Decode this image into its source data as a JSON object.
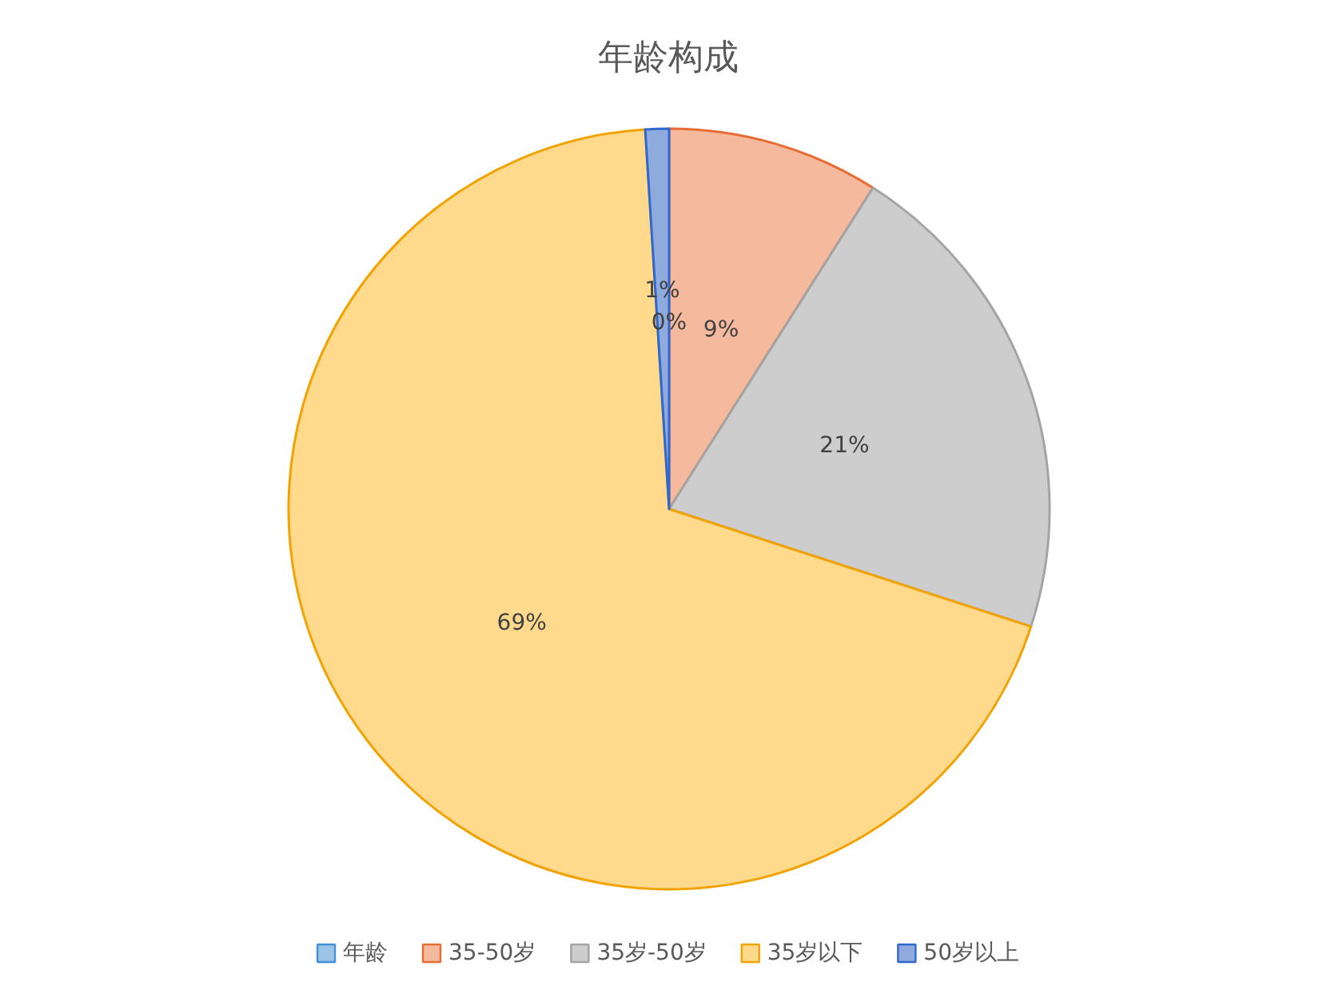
{
  "chart_data": {
    "type": "pie",
    "title": "年龄构成",
    "categories": [
      "年龄",
      "35-50岁",
      "35岁-50岁",
      "35岁以下",
      "50岁以上"
    ],
    "values": [
      0,
      9,
      21,
      69,
      1
    ],
    "colors": [
      "#9dc3e6",
      "#f5b99e",
      "#cdcdcd",
      "#ffd98c",
      "#8faadc"
    ],
    "value_labels": [
      "0%",
      "9%",
      "21%",
      "69%",
      "1%"
    ],
    "legend": "bottom"
  }
}
